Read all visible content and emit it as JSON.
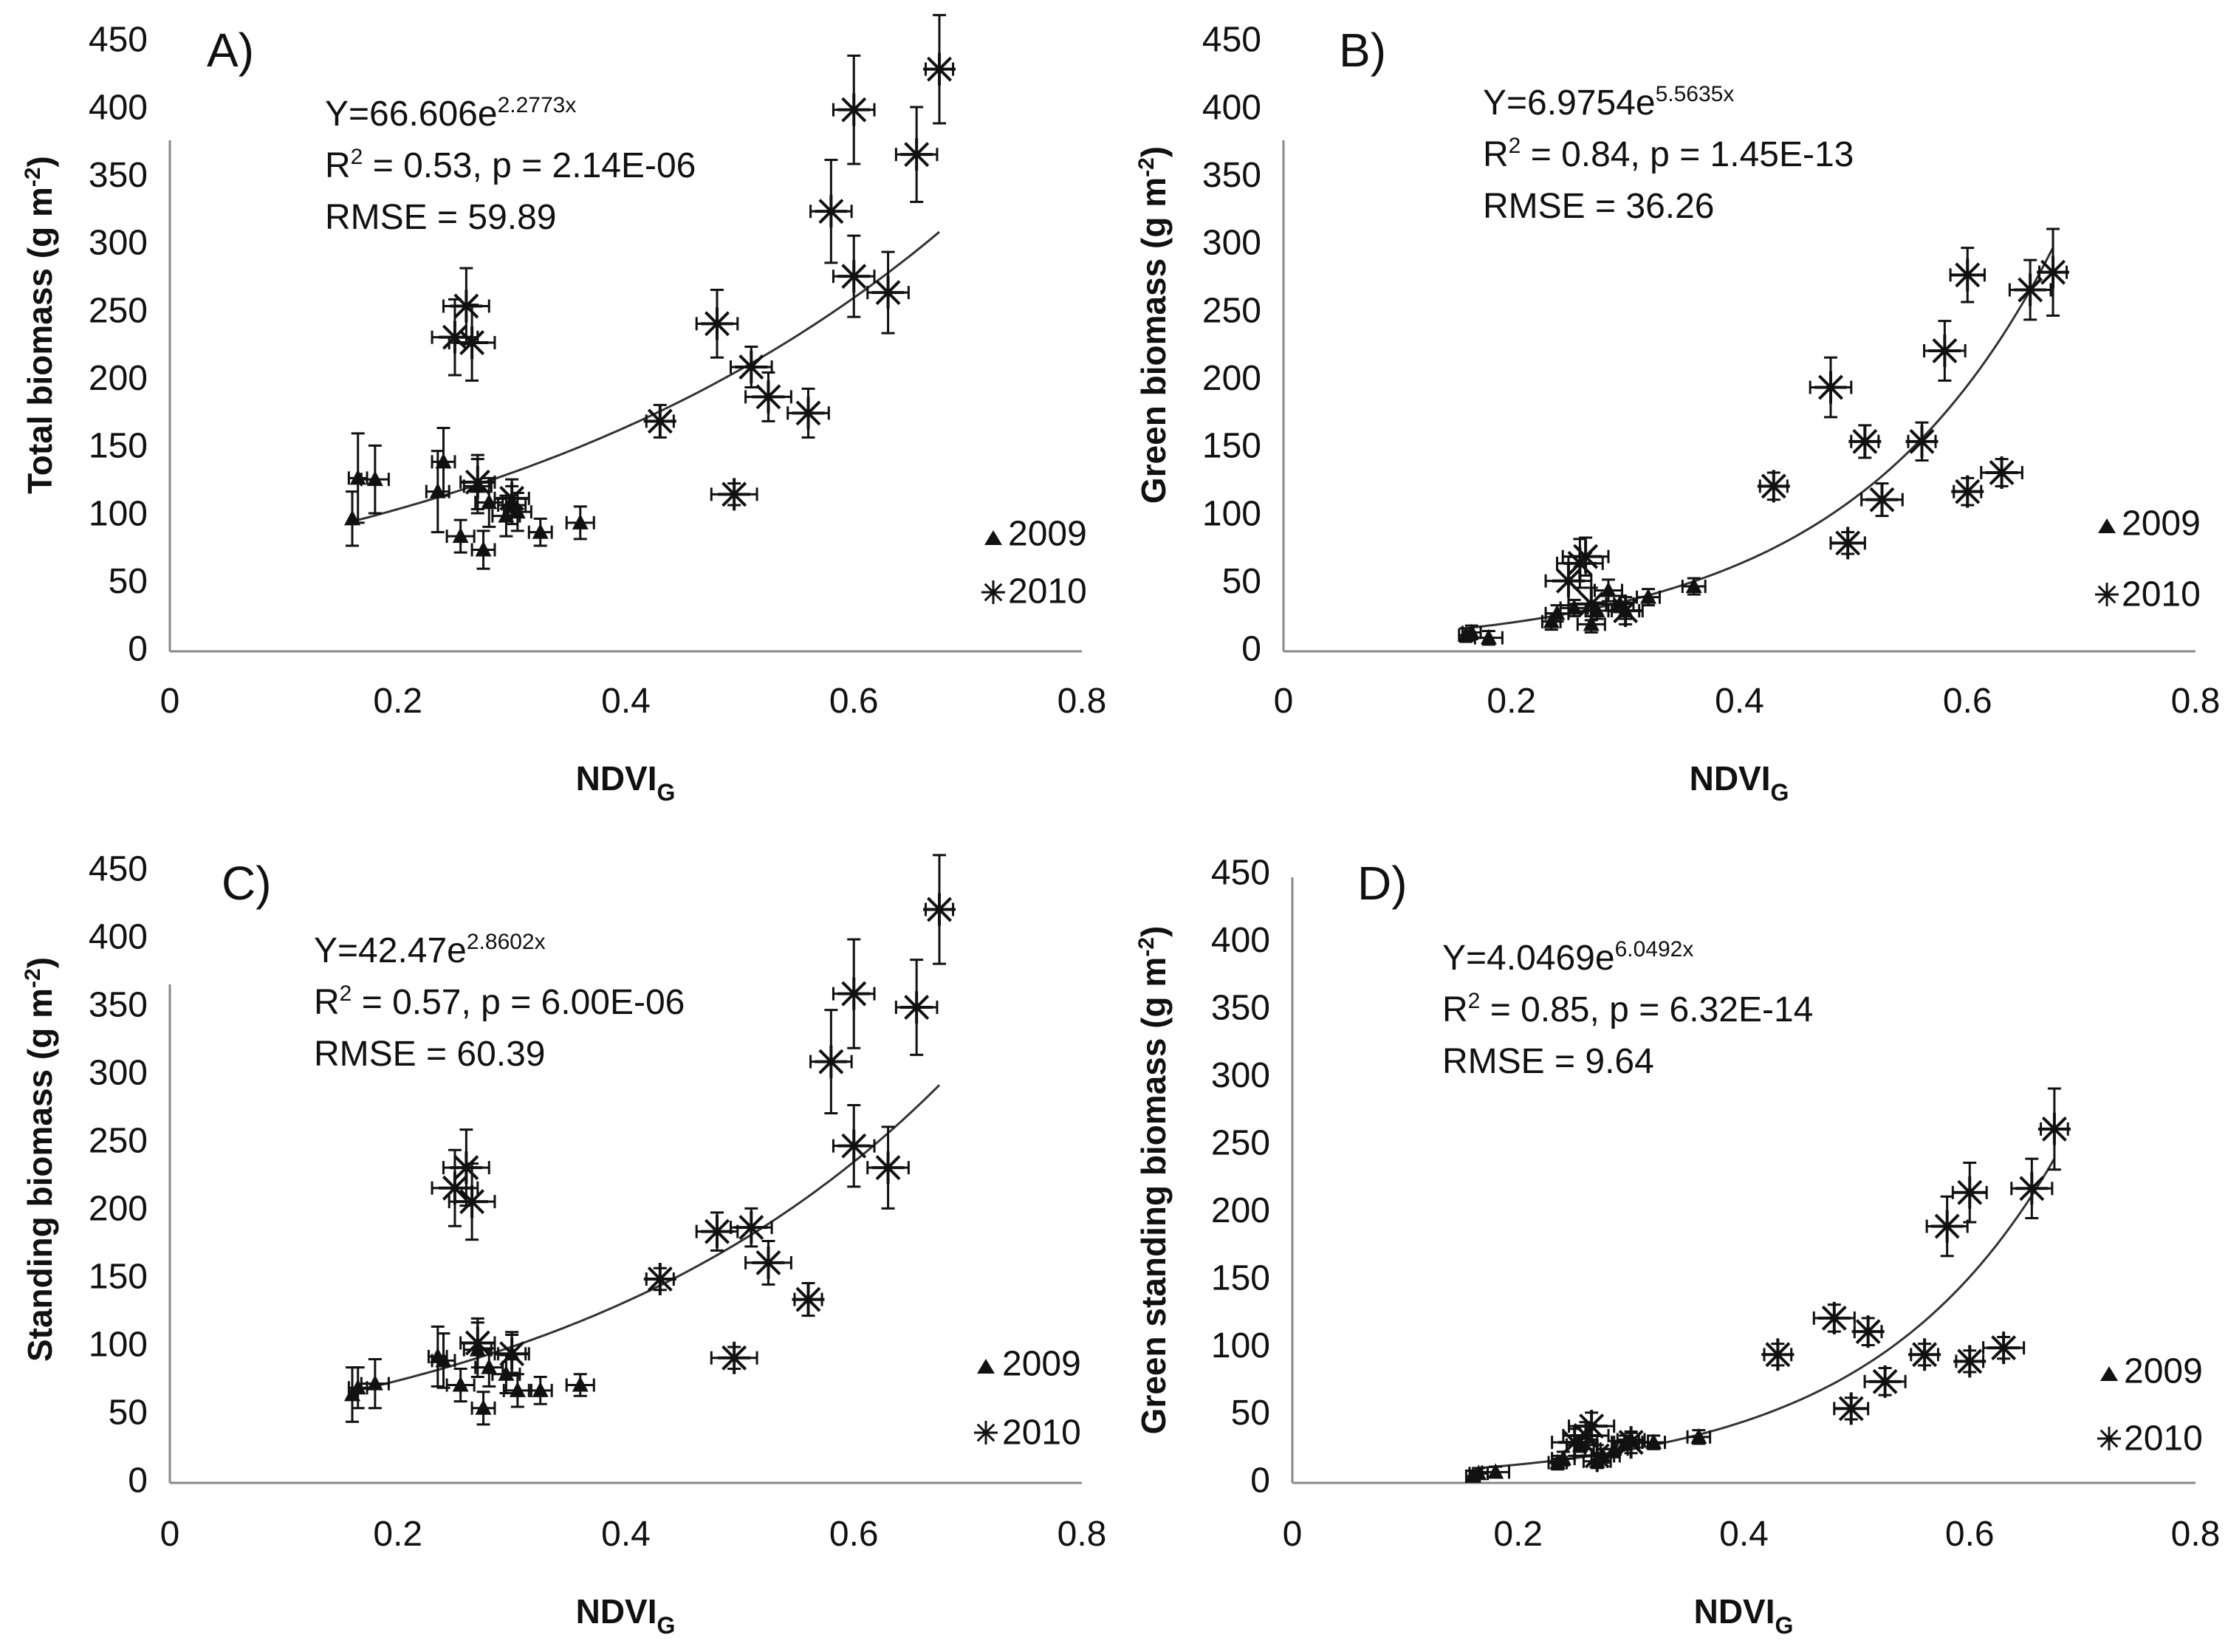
{
  "colors": {
    "ink": "#111111",
    "axis": "#888888",
    "background": "#ffffff"
  },
  "legend": {
    "y2009": "2009",
    "y2010": "2010",
    "marker_2009": "triangle-icon",
    "marker_2010": "asterisk-icon"
  },
  "chart_data": [
    {
      "type": "scatter",
      "panel_label": "A)",
      "equation": {
        "base": "Y=66.606e",
        "exponent": "2.2773x"
      },
      "stats": {
        "r2_label": "R",
        "r2_sup": "2",
        "r2_text": " = 0.53, p = 2.14E-06",
        "rmse": "RMSE = 59.89"
      },
      "fit": {
        "a": 66.606,
        "b": 2.2773,
        "x_from": 0.16,
        "x_to": 0.675
      },
      "xlabel": {
        "main": "NDVI",
        "sub": "G"
      },
      "ylabel": {
        "main": "Total biomass (g m",
        "sup": "-2",
        "end": ")"
      },
      "xlim": [
        0,
        0.8
      ],
      "ylim": [
        0,
        450
      ],
      "xticks": [
        "0",
        "0.2",
        "0.4",
        "0.6",
        "0.8"
      ],
      "yticks": [
        "0",
        "50",
        "100",
        "150",
        "200",
        "250",
        "300",
        "350",
        "400",
        "450"
      ],
      "series": [
        {
          "name": "2009",
          "marker": "triangle",
          "points": [
            [
              0.16,
              98
            ],
            [
              0.165,
              128
            ],
            [
              0.18,
              127
            ],
            [
              0.235,
              118
            ],
            [
              0.24,
              140
            ],
            [
              0.255,
              85
            ],
            [
              0.27,
              122
            ],
            [
              0.275,
              75
            ],
            [
              0.28,
              110
            ],
            [
              0.295,
              100
            ],
            [
              0.3,
              108
            ],
            [
              0.305,
              103
            ],
            [
              0.325,
              88
            ],
            [
              0.36,
              95
            ]
          ],
          "yerr": [
            20,
            33,
            25,
            30,
            25,
            12,
            20,
            14,
            18,
            15,
            14,
            14,
            10,
            12
          ],
          "xerr": [
            0,
            0.008,
            0.012,
            0.01,
            0.01,
            0.012,
            0.012,
            0.01,
            0.012,
            0.012,
            0.012,
            0.012,
            0.01,
            0.012
          ]
        },
        {
          "name": "2010",
          "marker": "asterisk",
          "points": [
            [
              0.25,
              232
            ],
            [
              0.26,
              255
            ],
            [
              0.265,
              228
            ],
            [
              0.27,
              125
            ],
            [
              0.3,
              113
            ],
            [
              0.43,
              170
            ],
            [
              0.48,
              242
            ],
            [
              0.495,
              116
            ],
            [
              0.51,
              210
            ],
            [
              0.525,
              188
            ],
            [
              0.56,
              176
            ],
            [
              0.58,
              325
            ],
            [
              0.6,
              400
            ],
            [
              0.6,
              277
            ],
            [
              0.63,
              265
            ],
            [
              0.655,
              367
            ],
            [
              0.675,
              430
            ]
          ],
          "yerr": [
            28,
            28,
            28,
            20,
            14,
            12,
            25,
            8,
            15,
            18,
            18,
            38,
            40,
            30,
            30,
            35,
            40
          ],
          "xerr": [
            0.02,
            0.02,
            0.02,
            0.015,
            0.015,
            0.012,
            0.018,
            0.02,
            0.018,
            0.02,
            0.018,
            0.018,
            0.018,
            0.018,
            0.018,
            0.018,
            0.012
          ]
        }
      ]
    },
    {
      "type": "scatter",
      "panel_label": "B)",
      "equation": {
        "base": "Y=6.9754e",
        "exponent": "5.5635x"
      },
      "stats": {
        "r2_label": "R",
        "r2_sup": "2",
        "r2_text": " = 0.84, p = 1.45E-13",
        "rmse": "RMSE = 36.26"
      },
      "fit": {
        "a": 6.9754,
        "b": 5.5635,
        "x_from": 0.16,
        "x_to": 0.675
      },
      "xlabel": {
        "main": "NDVI",
        "sub": "G"
      },
      "ylabel": {
        "main": "Green biomass (g m",
        "sup": "-2",
        "end": ")"
      },
      "xlim": [
        0,
        0.8
      ],
      "ylim": [
        0,
        450
      ],
      "xticks": [
        "0",
        "0.2",
        "0.4",
        "0.6",
        "0.8"
      ],
      "yticks": [
        "0",
        "50",
        "100",
        "150",
        "200",
        "250",
        "300",
        "350",
        "400",
        "450"
      ],
      "series": [
        {
          "name": "2009",
          "marker": "triangle",
          "points": [
            [
              0.16,
              12
            ],
            [
              0.165,
              14
            ],
            [
              0.18,
              10
            ],
            [
              0.235,
              22
            ],
            [
              0.24,
              28
            ],
            [
              0.255,
              32
            ],
            [
              0.27,
              20
            ],
            [
              0.275,
              30
            ],
            [
              0.285,
              45
            ],
            [
              0.295,
              35
            ],
            [
              0.3,
              30
            ],
            [
              0.32,
              40
            ],
            [
              0.36,
              48
            ]
          ],
          "yerr": [
            5,
            5,
            5,
            6,
            6,
            6,
            6,
            6,
            8,
            6,
            6,
            6,
            6
          ],
          "xerr": [
            0.006,
            0.008,
            0.012,
            0.008,
            0.01,
            0.012,
            0.012,
            0.01,
            0.012,
            0.012,
            0.012,
            0.01,
            0.01
          ]
        },
        {
          "name": "2010",
          "marker": "asterisk",
          "points": [
            [
              0.25,
              52
            ],
            [
              0.26,
              65
            ],
            [
              0.265,
              70
            ],
            [
              0.27,
              35
            ],
            [
              0.3,
              30
            ],
            [
              0.43,
              122
            ],
            [
              0.48,
              195
            ],
            [
              0.495,
              80
            ],
            [
              0.51,
              155
            ],
            [
              0.525,
              112
            ],
            [
              0.56,
              155
            ],
            [
              0.58,
              222
            ],
            [
              0.6,
              278
            ],
            [
              0.6,
              118
            ],
            [
              0.63,
              132
            ],
            [
              0.655,
              267
            ],
            [
              0.675,
              280
            ]
          ],
          "yerr": [
            18,
            18,
            14,
            12,
            10,
            10,
            22,
            8,
            12,
            12,
            14,
            22,
            20,
            10,
            10,
            22,
            32
          ],
          "xerr": [
            0.02,
            0.02,
            0.02,
            0.02,
            0.015,
            0.012,
            0.018,
            0.015,
            0.012,
            0.018,
            0.012,
            0.018,
            0.015,
            0.012,
            0.018,
            0.018,
            0.012
          ]
        }
      ]
    },
    {
      "type": "scatter",
      "panel_label": "C)",
      "equation": {
        "base": "Y=42.47e",
        "exponent": "2.8602x"
      },
      "stats": {
        "r2_label": "R",
        "r2_sup": "2",
        "r2_text": " = 0.57, p = 6.00E-06",
        "rmse": "RMSE = 60.39"
      },
      "fit": {
        "a": 42.47,
        "b": 2.8602,
        "x_from": 0.16,
        "x_to": 0.675
      },
      "xlabel": {
        "main": "NDVI",
        "sub": "G"
      },
      "ylabel": {
        "main": "Standing biomass (g m",
        "sup": "-2",
        "end": ")"
      },
      "xlim": [
        0,
        0.8
      ],
      "ylim": [
        0,
        450
      ],
      "xticks": [
        "0",
        "0.2",
        "0.4",
        "0.6",
        "0.8"
      ],
      "yticks": [
        "0",
        "50",
        "100",
        "150",
        "200",
        "250",
        "300",
        "350",
        "400",
        "450"
      ],
      "series": [
        {
          "name": "2009",
          "marker": "triangle",
          "points": [
            [
              0.16,
              65
            ],
            [
              0.165,
              70
            ],
            [
              0.18,
              73
            ],
            [
              0.235,
              93
            ],
            [
              0.24,
              90
            ],
            [
              0.255,
              72
            ],
            [
              0.27,
              98
            ],
            [
              0.275,
              55
            ],
            [
              0.28,
              85
            ],
            [
              0.295,
              80
            ],
            [
              0.3,
              95
            ],
            [
              0.305,
              68
            ],
            [
              0.325,
              68
            ],
            [
              0.36,
              72
            ]
          ],
          "yerr": [
            20,
            15,
            18,
            22,
            20,
            12,
            20,
            12,
            14,
            14,
            16,
            12,
            10,
            8
          ],
          "xerr": [
            0,
            0.008,
            0.012,
            0.008,
            0.01,
            0.012,
            0.012,
            0.01,
            0.012,
            0.012,
            0.012,
            0.012,
            0.01,
            0.012
          ]
        },
        {
          "name": "2010",
          "marker": "asterisk",
          "points": [
            [
              0.25,
              217
            ],
            [
              0.26,
              232
            ],
            [
              0.265,
              207
            ],
            [
              0.27,
              103
            ],
            [
              0.3,
              95
            ],
            [
              0.43,
              150
            ],
            [
              0.48,
              185
            ],
            [
              0.495,
              92
            ],
            [
              0.51,
              188
            ],
            [
              0.525,
              162
            ],
            [
              0.56,
              135
            ],
            [
              0.58,
              310
            ],
            [
              0.6,
              360
            ],
            [
              0.6,
              248
            ],
            [
              0.63,
              232
            ],
            [
              0.655,
              350
            ],
            [
              0.675,
              422
            ]
          ],
          "yerr": [
            28,
            28,
            28,
            18,
            14,
            8,
            14,
            8,
            14,
            16,
            12,
            38,
            40,
            30,
            30,
            35,
            40
          ],
          "xerr": [
            0.02,
            0.02,
            0.02,
            0.015,
            0.015,
            0.012,
            0.018,
            0.02,
            0.018,
            0.02,
            0.012,
            0.018,
            0.018,
            0.018,
            0.018,
            0.018,
            0.012
          ]
        }
      ]
    },
    {
      "type": "scatter",
      "panel_label": "D)",
      "equation": {
        "base": "Y=4.0469e",
        "exponent": "6.0492x"
      },
      "stats": {
        "r2_label": "R",
        "r2_sup": "2",
        "r2_text": " = 0.85, p = 6.32E-14",
        "rmse": "RMSE = 9.64"
      },
      "fit": {
        "a": 4.0469,
        "b": 6.0492,
        "x_from": 0.16,
        "x_to": 0.675
      },
      "xlabel": {
        "main": "NDVI",
        "sub": "G"
      },
      "ylabel": {
        "main": "Green standing biomass (g m",
        "sup": "-2",
        "end": ")"
      },
      "xlim": [
        0,
        0.8
      ],
      "ylim": [
        0,
        450
      ],
      "xticks": [
        "0",
        "0.2",
        "0.4",
        "0.6",
        "0.8"
      ],
      "yticks": [
        "0",
        "50",
        "100",
        "150",
        "200",
        "250",
        "300",
        "350",
        "400",
        "450"
      ],
      "series": [
        {
          "name": "2009",
          "marker": "triangle",
          "points": [
            [
              0.16,
              5
            ],
            [
              0.165,
              7
            ],
            [
              0.18,
              8
            ],
            [
              0.235,
              15
            ],
            [
              0.24,
              18
            ],
            [
              0.255,
              28
            ],
            [
              0.27,
              16
            ],
            [
              0.275,
              20
            ],
            [
              0.285,
              25
            ],
            [
              0.295,
              30
            ],
            [
              0.3,
              32
            ],
            [
              0.32,
              30
            ],
            [
              0.36,
              34
            ]
          ],
          "yerr": [
            4,
            4,
            4,
            5,
            5,
            5,
            5,
            5,
            6,
            5,
            5,
            5,
            5
          ],
          "xerr": [
            0.006,
            0.008,
            0.012,
            0.008,
            0.01,
            0.012,
            0.012,
            0.01,
            0.012,
            0.012,
            0.012,
            0.01,
            0.01
          ]
        },
        {
          "name": "2010",
          "marker": "asterisk",
          "points": [
            [
              0.25,
              30
            ],
            [
              0.26,
              35
            ],
            [
              0.265,
              42
            ],
            [
              0.27,
              20
            ],
            [
              0.3,
              30
            ],
            [
              0.43,
              95
            ],
            [
              0.48,
              122
            ],
            [
              0.495,
              55
            ],
            [
              0.51,
              112
            ],
            [
              0.525,
              75
            ],
            [
              0.56,
              95
            ],
            [
              0.58,
              190
            ],
            [
              0.6,
              215
            ],
            [
              0.6,
              90
            ],
            [
              0.63,
              100
            ],
            [
              0.655,
              218
            ],
            [
              0.675,
              262
            ]
          ],
          "yerr": [
            10,
            10,
            10,
            8,
            8,
            8,
            10,
            8,
            10,
            10,
            8,
            22,
            22,
            8,
            8,
            22,
            30
          ],
          "xerr": [
            0.02,
            0.02,
            0.02,
            0.02,
            0.015,
            0.012,
            0.018,
            0.015,
            0.012,
            0.018,
            0.012,
            0.018,
            0.015,
            0.012,
            0.018,
            0.018,
            0.012
          ]
        }
      ]
    }
  ]
}
